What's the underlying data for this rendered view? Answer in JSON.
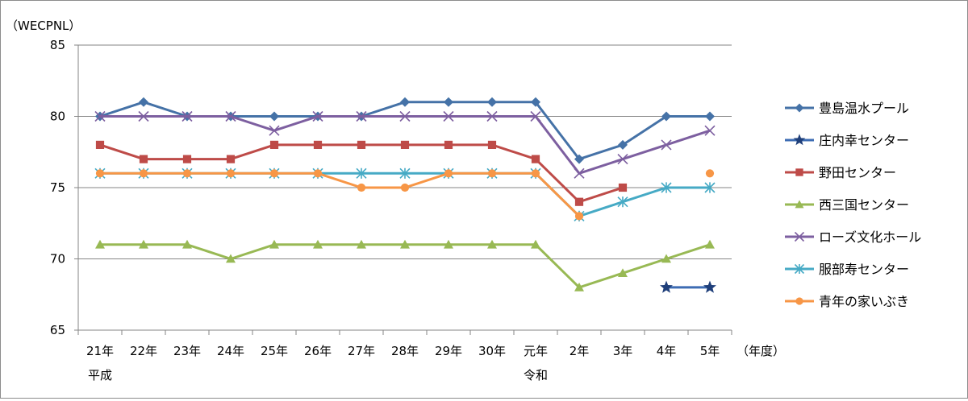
{
  "chart_data": {
    "type": "line",
    "ylabel": "（WECPNL）",
    "xlabel": "（年度）",
    "ylim": [
      65,
      85
    ],
    "yticks": [
      65,
      70,
      75,
      80,
      85
    ],
    "grid": true,
    "legend_position": "right",
    "categories": [
      "21年",
      "22年",
      "23年",
      "24年",
      "25年",
      "26年",
      "27年",
      "28年",
      "29年",
      "30年",
      "元年",
      "2年",
      "3年",
      "4年",
      "5年"
    ],
    "era_labels": [
      {
        "at_category": "21年",
        "text": "平成"
      },
      {
        "at_category": "元年",
        "text": "令和"
      }
    ],
    "series": [
      {
        "name": "豊島温水プール",
        "color": "#4572A7",
        "marker": "diamond",
        "values": [
          80,
          81,
          80,
          80,
          80,
          80,
          80,
          81,
          81,
          81,
          81,
          77,
          78,
          80,
          80
        ]
      },
      {
        "name": "庄内幸センター",
        "color": "#3D6CB3",
        "marker": "star",
        "values": [
          null,
          null,
          null,
          null,
          null,
          null,
          null,
          null,
          null,
          null,
          null,
          null,
          null,
          68,
          68
        ]
      },
      {
        "name": "野田センター",
        "color": "#BE4B48",
        "marker": "square",
        "values": [
          78,
          77,
          77,
          77,
          78,
          78,
          78,
          78,
          78,
          78,
          77,
          74,
          75,
          null,
          null
        ]
      },
      {
        "name": "西三国センター",
        "color": "#98B954",
        "marker": "triangle",
        "values": [
          71,
          71,
          71,
          70,
          71,
          71,
          71,
          71,
          71,
          71,
          71,
          68,
          69,
          70,
          71
        ]
      },
      {
        "name": "ローズ文化ホール",
        "color": "#7D5FA0",
        "marker": "x",
        "values": [
          80,
          80,
          80,
          80,
          79,
          80,
          80,
          80,
          80,
          80,
          80,
          76,
          77,
          78,
          79
        ]
      },
      {
        "name": "服部寿センター",
        "color": "#46AAC5",
        "marker": "asterisk",
        "values": [
          76,
          76,
          76,
          76,
          76,
          76,
          76,
          76,
          76,
          76,
          76,
          73,
          74,
          75,
          75
        ]
      },
      {
        "name": "青年の家いぶき",
        "color": "#F79646",
        "marker": "circle",
        "values": [
          76,
          76,
          76,
          76,
          76,
          76,
          75,
          75,
          76,
          76,
          76,
          73,
          null,
          null,
          76
        ]
      }
    ]
  }
}
